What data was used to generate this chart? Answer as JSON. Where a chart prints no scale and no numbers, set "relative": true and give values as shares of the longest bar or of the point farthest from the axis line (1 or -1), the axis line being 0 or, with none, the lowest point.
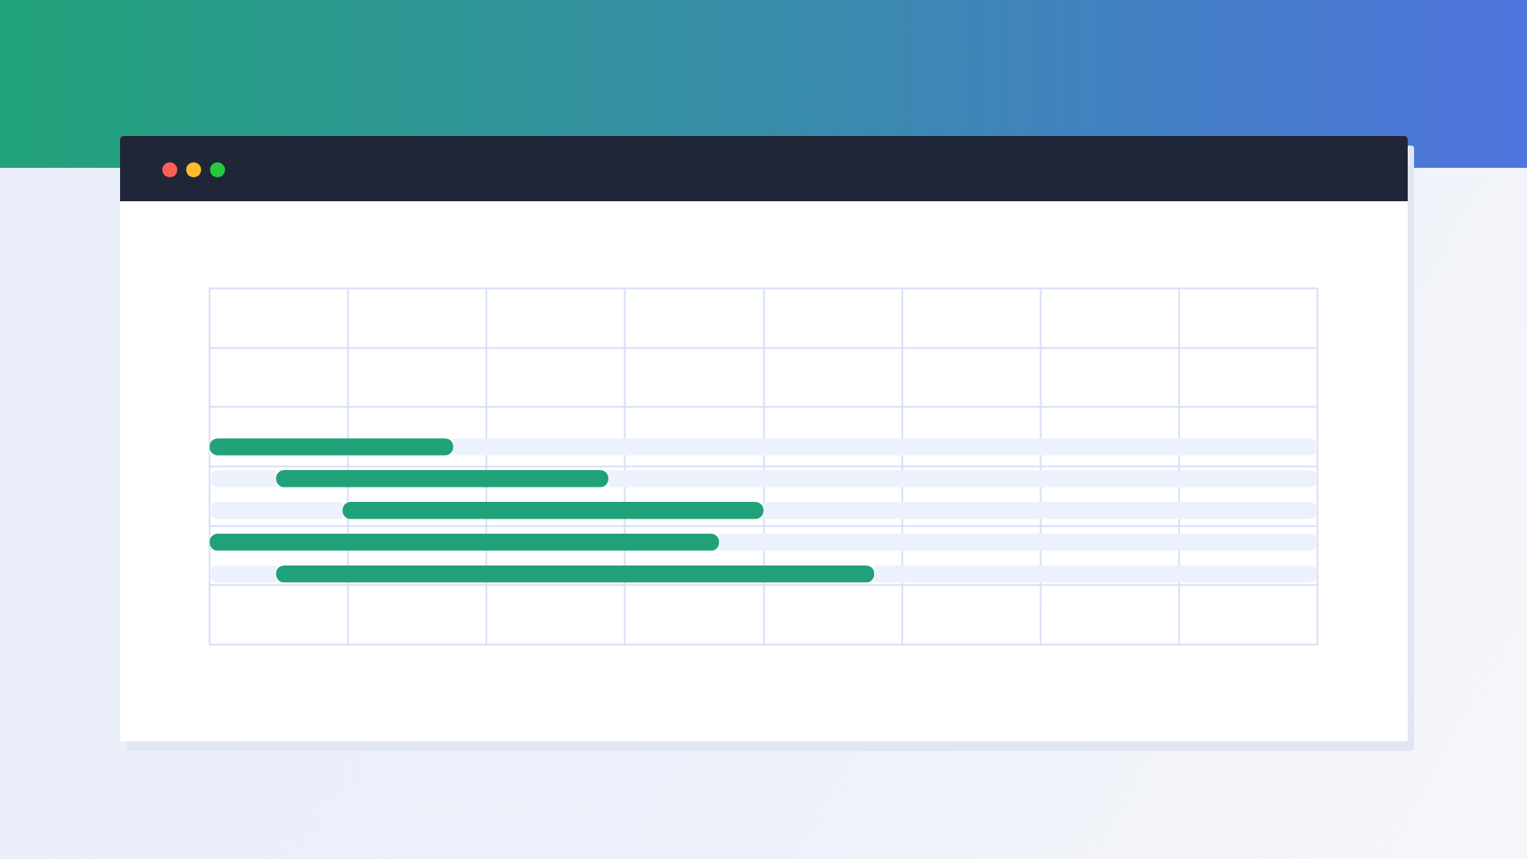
{
  "chart_data": {
    "type": "bar",
    "orientation": "horizontal",
    "stacked": true,
    "relative": true,
    "grid": true,
    "categories": [
      null,
      null,
      null,
      null,
      null
    ],
    "series": [
      {
        "color": "#edf1fd",
        "values": [
          0,
          0.06,
          0.12,
          0,
          0.06
        ]
      },
      {
        "color": "#21a17a",
        "values": [
          0.22,
          0.3,
          0.38,
          0.46,
          0.54
        ]
      },
      {
        "color": "#edf1fd",
        "values": [
          0.78,
          0.64,
          0.5,
          0.54,
          0.4
        ]
      }
    ]
  }
}
